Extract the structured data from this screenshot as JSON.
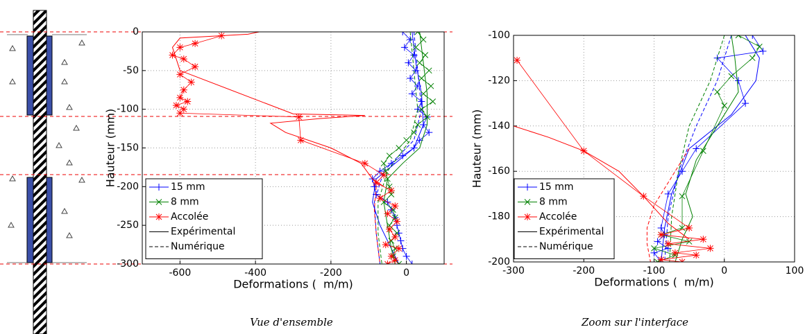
{
  "captions": [
    "Vue d'ensemble",
    "Zoom sur l'interface"
  ],
  "chart_data": [
    {
      "type": "line",
      "xlabel": "Deformations (  m/m)",
      "ylabel": "Hauteur (mm)",
      "xlim": [
        -700,
        100
      ],
      "xticks": [
        -600,
        -400,
        -200,
        0
      ],
      "ylim": [
        -300,
        0
      ],
      "yticks": [
        0,
        -50,
        -100,
        -150,
        -200,
        -250,
        -300
      ],
      "grid": true,
      "legend": "lower left",
      "series": [
        {
          "name": "15 mm",
          "color": "#0000ff",
          "marker": "+",
          "measured": {
            "x": [
              -10,
              10,
              -5,
              20,
              5,
              25,
              10,
              30,
              15,
              40,
              30,
              55,
              45,
              60,
              35,
              20,
              -10,
              -40,
              -70,
              -90,
              -85,
              -80,
              -50,
              -40,
              -30,
              -25,
              -20,
              -15,
              -10,
              0,
              15
            ],
            "y": [
              0,
              -10,
              -20,
              -30,
              -40,
              -50,
              -60,
              -70,
              -80,
              -90,
              -100,
              -110,
              -120,
              -130,
              -140,
              -150,
              -160,
              -170,
              -180,
              -190,
              -200,
              -210,
              -220,
              -230,
              -240,
              -250,
              -260,
              -270,
              -280,
              -290,
              -300
            ]
          },
          "experimental": {
            "x": [
              15,
              25,
              40,
              45,
              20,
              -30,
              -80,
              -90,
              -70,
              -40,
              -20
            ],
            "y": [
              0,
              -40,
              -80,
              -120,
              -150,
              -170,
              -190,
              -220,
              -250,
              -280,
              -300
            ]
          },
          "numerical": {
            "x": [
              20,
              30,
              40,
              20,
              -60,
              -85,
              -80,
              -70
            ],
            "y": [
              0,
              -50,
              -100,
              -140,
              -180,
              -220,
              -260,
              -300
            ]
          }
        },
        {
          "name": "8 mm",
          "color": "#008000",
          "marker": "x",
          "measured": {
            "x": [
              30,
              45,
              25,
              50,
              35,
              60,
              40,
              65,
              45,
              70,
              40,
              55,
              30,
              20,
              0,
              -20,
              -45,
              -60,
              -55,
              -50,
              -45,
              -40,
              -60,
              -35,
              -30,
              -45,
              -25,
              -40,
              -30,
              -35,
              -20
            ],
            "y": [
              0,
              -10,
              -20,
              -30,
              -40,
              -50,
              -60,
              -70,
              -80,
              -90,
              -100,
              -110,
              -120,
              -130,
              -140,
              -150,
              -160,
              -170,
              -180,
              -190,
              -200,
              -210,
              -220,
              -230,
              -240,
              -250,
              -260,
              -270,
              -280,
              -290,
              -300
            ]
          },
          "experimental": {
            "x": [
              35,
              45,
              55,
              55,
              35,
              -10,
              -50,
              -60,
              -50,
              -40,
              -30
            ],
            "y": [
              0,
              -40,
              -80,
              -120,
              -150,
              -170,
              -190,
              -220,
              -250,
              -280,
              -300
            ]
          },
          "numerical": {
            "x": [
              10,
              20,
              30,
              10,
              -50,
              -75,
              -75,
              -65
            ],
            "y": [
              0,
              -50,
              -100,
              -140,
              -180,
              -220,
              -260,
              -300
            ]
          }
        },
        {
          "name": "Accolée",
          "color": "#ff0000",
          "marker": "*",
          "measured": {
            "x": [
              -490,
              -560,
              -600,
              -620,
              -590,
              -560,
              -600,
              -570,
              -590,
              -600,
              -580,
              -610,
              -590,
              -600,
              -285,
              -280,
              -110,
              -60,
              -80,
              -40,
              -70,
              -30,
              -50,
              -25,
              -45,
              -30,
              -55,
              -20,
              -40,
              -30,
              -50
            ],
            "y": [
              -5,
              -15,
              -20,
              -30,
              -35,
              -45,
              -55,
              -65,
              -75,
              -85,
              -90,
              -95,
              -100,
              -105,
              -110,
              -140,
              -170,
              -185,
              -195,
              -205,
              -215,
              -225,
              -235,
              -245,
              -255,
              -265,
              -275,
              -280,
              -290,
              -295,
              -300
            ]
          },
          "experimental": {
            "x": [
              -390,
              -420,
              -600,
              -620,
              -600,
              -300,
              -110,
              -230,
              -360,
              -320,
              -200,
              -120,
              -90,
              -60
            ],
            "y": [
              0,
              -3,
              -8,
              -20,
              -50,
              -106,
              -108,
              -112,
              -118,
              -130,
              -150,
              -170,
              -190,
              -200
            ]
          },
          "numerical": {
            "x": [
              -80,
              -85,
              -80,
              -70
            ],
            "y": [
              -200,
              -230,
              -260,
              -300
            ]
          }
        }
      ],
      "line_styles": [
        {
          "name": "Expérimental",
          "dash": "solid"
        },
        {
          "name": "Numérique",
          "dash": "dashed"
        }
      ]
    },
    {
      "type": "line",
      "xlabel": "Deformations (  m/m)",
      "ylabel": "Hauteur (mm)",
      "xlim": [
        -300,
        100
      ],
      "xticks": [
        -300,
        -200,
        -100,
        0,
        100
      ],
      "ylim": [
        -200,
        -100
      ],
      "yticks": [
        -100,
        -120,
        -140,
        -160,
        -180,
        -200
      ],
      "grid": true,
      "legend": "lower left",
      "series": [
        {
          "name": "15 mm",
          "color": "#0000ff",
          "marker": "+",
          "measured": {
            "x": [
              40,
              55,
              -10,
              20,
              30,
              -40,
              -60,
              -80,
              -90,
              -85,
              -95,
              -80,
              -100,
              -90
            ],
            "y": [
              -100,
              -107,
              -110,
              -120,
              -130,
              -150,
              -160,
              -170,
              -185,
              -188,
              -191,
              -194,
              -196,
              -200
            ]
          },
          "experimental": {
            "x": [
              30,
              50,
              45,
              10,
              -50,
              -75,
              -85,
              -90
            ],
            "y": [
              -100,
              -110,
              -120,
              -135,
              -150,
              -170,
              -185,
              -200
            ]
          },
          "numerical": {
            "x": [
              10,
              -10,
              -40,
              -65,
              -80,
              -85
            ],
            "y": [
              -100,
              -120,
              -140,
              -160,
              -180,
              -200
            ]
          }
        },
        {
          "name": "8 mm",
          "color": "#008000",
          "marker": "x",
          "measured": {
            "x": [
              20,
              50,
              40,
              10,
              -10,
              0,
              -30,
              -60,
              -60,
              -90,
              -50,
              -100,
              -70,
              -95
            ],
            "y": [
              -100,
              -105,
              -110,
              -118,
              -125,
              -131,
              -151,
              -171,
              -185,
              -188,
              -191,
              -194,
              -197,
              -200
            ]
          },
          "experimental": {
            "x": [
              10,
              15,
              20,
              -10,
              -40,
              -55,
              -45,
              -60,
              -70
            ],
            "y": [
              -100,
              -110,
              -125,
              -140,
              -155,
              -170,
              -180,
              -190,
              -200
            ]
          },
          "numerical": {
            "x": [
              0,
              -20,
              -50,
              -65,
              -75,
              -78
            ],
            "y": [
              -100,
              -120,
              -140,
              -160,
              -180,
              -200
            ]
          }
        },
        {
          "name": "Accolée",
          "color": "#ff0000",
          "marker": "*",
          "measured": {
            "x": [
              -295,
              -200,
              -115,
              -50,
              -90,
              -30,
              -80,
              -20,
              -70,
              -40,
              -90,
              -60
            ],
            "y": [
              -111,
              -151,
              -171,
              -185,
              -188,
              -190,
              -192,
              -194,
              -196,
              -197,
              -199,
              -200
            ]
          },
          "experimental": {
            "x": [
              -300,
              -250,
              -200,
              -150,
              -115,
              -80,
              -50
            ],
            "y": [
              -140,
              -145,
              -151,
              -160,
              -171,
              -183,
              -190
            ]
          },
          "numerical": {
            "x": [
              -50,
              -80,
              -100,
              -110,
              -110,
              -105
            ],
            "y": [
              -150,
              -165,
              -175,
              -185,
              -192,
              -200
            ]
          }
        }
      ],
      "line_styles": [
        {
          "name": "Expérimental",
          "dash": "solid"
        },
        {
          "name": "Numérique",
          "dash": "dashed"
        }
      ]
    }
  ]
}
